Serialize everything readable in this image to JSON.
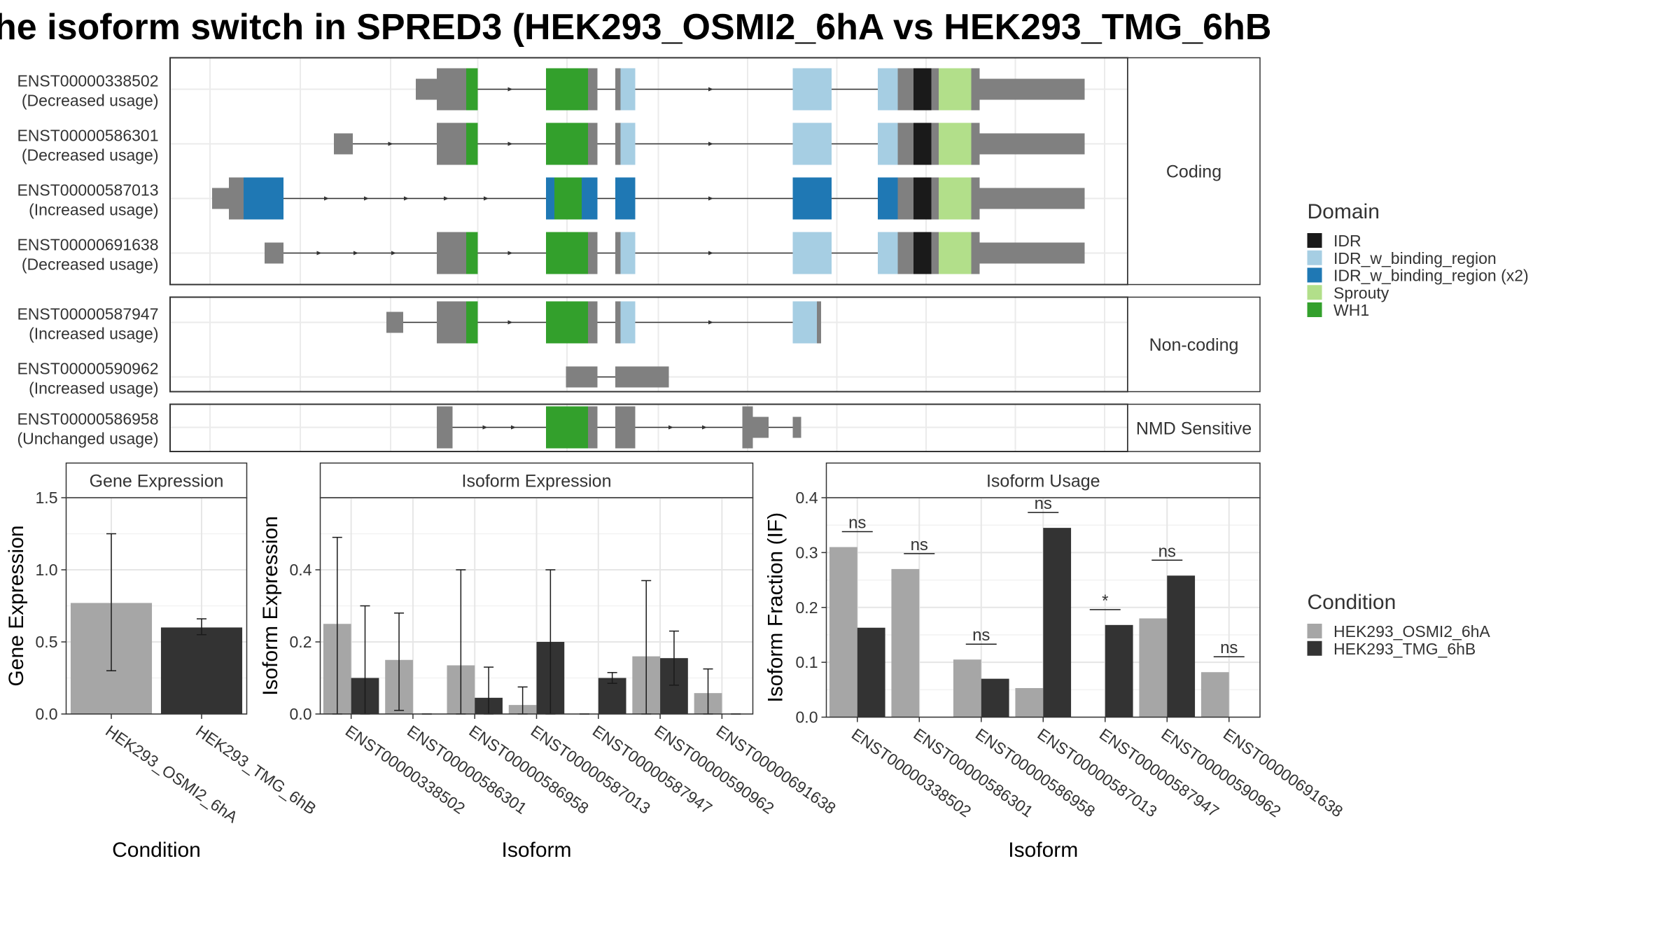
{
  "title": "he isoform switch in SPRED3 (HEK293_OSMI2_6hA vs HEK293_TMG_6hB",
  "colors": {
    "exon": "#808080",
    "IDR": "#1a1a1a",
    "IDR_w_binding_region": "#a6cee3",
    "IDR_w_binding_region (x2)": "#1f78b4",
    "Sprouty": "#b2df8a",
    "WH1": "#33a02c",
    "HEK293_OSMI2_6hA": "#a6a6a6",
    "HEK293_TMG_6hB": "#333333"
  },
  "isoform_structure": {
    "panels": [
      {
        "label": "Coding",
        "isoforms": [
          {
            "id": "ENST00000338502",
            "usage": "(Decreased usage)"
          },
          {
            "id": "ENST00000586301",
            "usage": "(Decreased usage)"
          },
          {
            "id": "ENST00000587013",
            "usage": "(Increased usage)"
          },
          {
            "id": "ENST00000691638",
            "usage": "(Decreased usage)"
          }
        ]
      },
      {
        "label": "Non-coding",
        "isoforms": [
          {
            "id": "ENST00000587947",
            "usage": "(Increased usage)"
          },
          {
            "id": "ENST00000590962",
            "usage": "(Increased usage)"
          }
        ]
      },
      {
        "label": "NMD Sensitive",
        "isoforms": [
          {
            "id": "ENST00000586958",
            "usage": "(Unchanged usage)"
          }
        ]
      }
    ]
  },
  "legend_domain": {
    "title": "Domain",
    "items": [
      "IDR",
      "IDR_w_binding_region",
      "IDR_w_binding_region (x2)",
      "Sprouty",
      "WH1"
    ]
  },
  "legend_condition": {
    "title": "Condition",
    "items": [
      "HEK293_OSMI2_6hA",
      "HEK293_TMG_6hB"
    ]
  },
  "chart_data": [
    {
      "type": "bar",
      "title": "Gene Expression",
      "xlabel": "Condition",
      "ylabel": "Gene Expression",
      "ylim": [
        0,
        1.5
      ],
      "yticks": [
        "0.0",
        "0.5",
        "1.0",
        "1.5"
      ],
      "categories": [
        "HEK293_OSMI2_6hA",
        "HEK293_TMG_6hB"
      ],
      "values": [
        0.77,
        0.6
      ],
      "error_low": [
        0.3,
        0.55
      ],
      "error_high": [
        1.25,
        0.66
      ]
    },
    {
      "type": "bar",
      "title": "Isoform Expression",
      "xlabel": "Isoform",
      "ylabel": "Isoform Expression",
      "ylim": [
        0,
        0.6
      ],
      "yticks": [
        "0.0",
        "0.2",
        "0.4"
      ],
      "categories": [
        "ENST00000338502",
        "ENST00000586301",
        "ENST00000586958",
        "ENST00000587013",
        "ENST00000587947",
        "ENST00000590962",
        "ENST00000691638"
      ],
      "series": [
        {
          "name": "HEK293_OSMI2_6hA",
          "values": [
            0.25,
            0.15,
            0.135,
            0.025,
            0.0,
            0.16,
            0.058
          ],
          "error_low": [
            0.0,
            0.01,
            0.0,
            0.0,
            0.0,
            0.0,
            0.0
          ],
          "error_high": [
            0.49,
            0.28,
            0.4,
            0.075,
            0.0,
            0.37,
            0.125
          ]
        },
        {
          "name": "HEK293_TMG_6hB",
          "values": [
            0.1,
            0.0,
            0.045,
            0.2,
            0.1,
            0.155,
            0.0
          ],
          "error_low": [
            0.0,
            0.0,
            0.0,
            0.0,
            0.085,
            0.08,
            0.0
          ],
          "error_high": [
            0.3,
            0.0,
            0.13,
            0.4,
            0.115,
            0.23,
            0.0
          ]
        }
      ]
    },
    {
      "type": "bar",
      "title": "Isoform Usage",
      "xlabel": "Isoform",
      "ylabel": "Isoform Fraction (IF)",
      "ylim": [
        0,
        0.4
      ],
      "yticks": [
        "0.0",
        "0.1",
        "0.2",
        "0.3",
        "0.4"
      ],
      "categories": [
        "ENST00000338502",
        "ENST00000586301",
        "ENST00000586958",
        "ENST00000587013",
        "ENST00000587947",
        "ENST00000590962",
        "ENST00000691638"
      ],
      "series": [
        {
          "name": "HEK293_OSMI2_6hA",
          "values": [
            0.31,
            0.27,
            0.105,
            0.053,
            0.0,
            0.18,
            0.082
          ]
        },
        {
          "name": "HEK293_TMG_6hB",
          "values": [
            0.163,
            0.0,
            0.07,
            0.345,
            0.168,
            0.258,
            0.0
          ]
        }
      ],
      "significance": [
        "ns",
        "ns",
        "ns",
        "ns",
        "*",
        "ns",
        "ns"
      ]
    }
  ]
}
